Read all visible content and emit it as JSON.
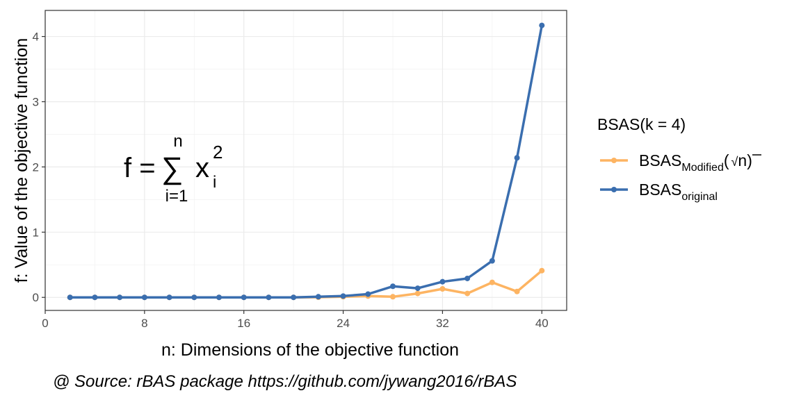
{
  "chart_data": {
    "type": "line",
    "xlabel": "n: Dimensions of the objective function",
    "ylabel": "f: Value of the objective function",
    "xlim": [
      0,
      42
    ],
    "ylim": [
      -0.2,
      4.4
    ],
    "xticks": [
      0,
      8,
      16,
      24,
      32,
      40
    ],
    "yticks": [
      0,
      1,
      2,
      3,
      4
    ],
    "grid": true,
    "legend_position": "right",
    "legend": {
      "title": "BSAS(k = 4)",
      "items": [
        {
          "base": "BSAS",
          "sub": "Modified",
          "suffix_open": "(",
          "sqrt_sign": "√",
          "suffix_arg": "n",
          "suffix_close": ")"
        },
        {
          "base": "BSAS",
          "sub": "original"
        }
      ]
    },
    "annotation": {
      "lhs": "f =",
      "sum_sign": "∑",
      "upper": "n",
      "lower": "i=1",
      "var": "x",
      "sub": "i",
      "sup": "2"
    },
    "caption": "@ Source: rBAS package https://github.com/jywang2016/rBAS",
    "series": [
      {
        "key": "modified",
        "color": "#FDB462",
        "x": [
          2,
          4,
          6,
          8,
          10,
          12,
          14,
          16,
          18,
          20,
          22,
          24,
          26,
          28,
          30,
          32,
          34,
          36,
          38,
          40
        ],
        "y": [
          0,
          0,
          0,
          0,
          0,
          0,
          0,
          0,
          0,
          0,
          0.002,
          0.01,
          0.02,
          0.01,
          0.06,
          0.13,
          0.06,
          0.23,
          0.09,
          0.41
        ]
      },
      {
        "key": "original",
        "color": "#3A6EAF",
        "x": [
          2,
          4,
          6,
          8,
          10,
          12,
          14,
          16,
          18,
          20,
          22,
          24,
          26,
          28,
          30,
          32,
          34,
          36,
          38,
          40
        ],
        "y": [
          0,
          0,
          0,
          0,
          0,
          0,
          0,
          0,
          0,
          0,
          0.01,
          0.02,
          0.05,
          0.17,
          0.14,
          0.24,
          0.29,
          0.56,
          2.14,
          4.17
        ]
      }
    ]
  }
}
